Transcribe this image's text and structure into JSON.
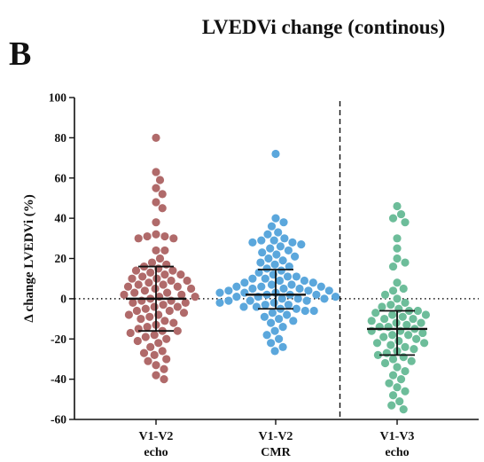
{
  "panel_label": "B",
  "chart_data": {
    "type": "scatter",
    "title": "LVEDVi change (continous)",
    "ylabel": "Δ change LVEDVi (%)",
    "xlabel": "",
    "ylim": [
      -60,
      100
    ],
    "yticks": [
      -60,
      -40,
      -20,
      0,
      20,
      40,
      60,
      80,
      100
    ],
    "grid": false,
    "reference_line_y": 0,
    "separator_after_group": 2,
    "groups": [
      {
        "label_line1": "V1-V2",
        "label_line2": "echo",
        "color": "#b06a6a",
        "mean": 0,
        "sd_upper": 16,
        "sd_lower": -16,
        "values": [
          80,
          63,
          59,
          55,
          52,
          48,
          45,
          38,
          32,
          31,
          31,
          30,
          30,
          24,
          24,
          20,
          18,
          17,
          16,
          15,
          14,
          14,
          13,
          12,
          12,
          11,
          10,
          10,
          9,
          9,
          8,
          7,
          7,
          6,
          6,
          5,
          5,
          4,
          3,
          3,
          2,
          2,
          1,
          1,
          0,
          -1,
          -1,
          -2,
          -2,
          -3,
          -4,
          -4,
          -5,
          -6,
          -6,
          -7,
          -8,
          -8,
          -9,
          -10,
          -11,
          -12,
          -13,
          -14,
          -15,
          -16,
          -16,
          -17,
          -18,
          -19,
          -20,
          -21,
          -22,
          -24,
          -26,
          -27,
          -28,
          -30,
          -31,
          -33,
          -35,
          -38,
          -40
        ]
      },
      {
        "label_line1": "V1-V2",
        "label_line2": "CMR",
        "color": "#5ba7dc",
        "mean": 2,
        "sd_upper": 14.5,
        "sd_lower": -5,
        "values": [
          72,
          40,
          38,
          36,
          33,
          32,
          30,
          29,
          29,
          28,
          28,
          27,
          26,
          25,
          24,
          23,
          22,
          21,
          20,
          19,
          18,
          17,
          16,
          15,
          14,
          13,
          12,
          11,
          11,
          10,
          10,
          9,
          9,
          8,
          8,
          7,
          7,
          6,
          6,
          6,
          5,
          5,
          5,
          4,
          4,
          4,
          3,
          3,
          3,
          2,
          2,
          2,
          1,
          1,
          1,
          0,
          0,
          0,
          -1,
          -1,
          -1,
          -2,
          -2,
          -3,
          -3,
          -4,
          -4,
          -5,
          -5,
          -6,
          -6,
          -7,
          -8,
          -9,
          -10,
          -11,
          -12,
          -14,
          -16,
          -18,
          -20,
          -22,
          -24,
          -26
        ]
      },
      {
        "label_line1": "V1-V3",
        "label_line2": "echo",
        "color": "#6dbd9a",
        "mean": -15,
        "sd_upper": -6,
        "sd_lower": -28,
        "values": [
          46,
          42,
          40,
          38,
          30,
          25,
          20,
          18,
          16,
          8,
          5,
          4,
          2,
          0,
          -2,
          -3,
          -4,
          -5,
          -6,
          -6,
          -7,
          -8,
          -8,
          -9,
          -10,
          -10,
          -11,
          -12,
          -12,
          -13,
          -14,
          -14,
          -15,
          -16,
          -16,
          -17,
          -18,
          -18,
          -19,
          -20,
          -21,
          -22,
          -22,
          -23,
          -24,
          -25,
          -26,
          -27,
          -28,
          -29,
          -30,
          -31,
          -32,
          -34,
          -36,
          -38,
          -40,
          -42,
          -44,
          -46,
          -48,
          -51,
          -53,
          -55
        ]
      }
    ]
  }
}
